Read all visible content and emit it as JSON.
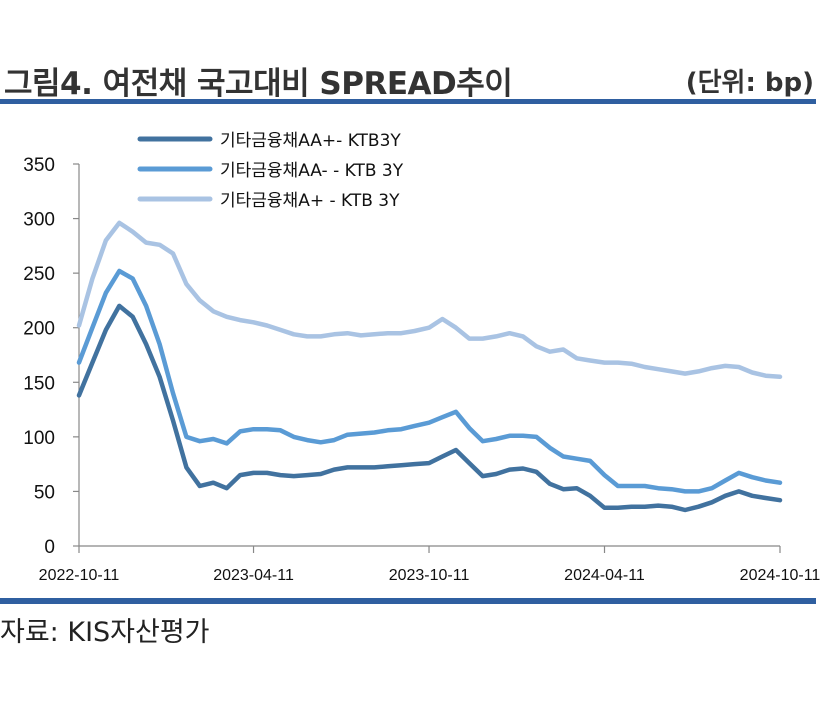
{
  "header": {
    "title": "그림4. 여전채 국고대비 SPREAD추이",
    "unit": "(단위: bp)"
  },
  "footer": {
    "source": "자료: KIS자산평가"
  },
  "chart_data": {
    "type": "line",
    "title": "그림4. 여전채 국고대비 SPREAD추이",
    "ylabel": "",
    "xlabel": "",
    "ylim": [
      0,
      350
    ],
    "yticks": [
      0,
      50,
      100,
      150,
      200,
      250,
      300,
      350
    ],
    "xlim": [
      "2022-10-11",
      "2024-10-11"
    ],
    "xticks": [
      "2022-10-11",
      "2023-04-11",
      "2023-10-11",
      "2024-04-11",
      "2024-10-11"
    ],
    "xtick_labels": [
      "2022-10-11",
      "2023-04-11",
      "2023-10-11",
      "2024-04-11",
      "2024-10-11"
    ],
    "grid": false,
    "legend_position": "top",
    "x": [
      "2022-10-11",
      "2022-10-25",
      "2022-11-08",
      "2022-11-22",
      "2022-12-06",
      "2022-12-20",
      "2023-01-03",
      "2023-01-17",
      "2023-01-31",
      "2023-02-14",
      "2023-02-28",
      "2023-03-14",
      "2023-03-28",
      "2023-04-11",
      "2023-04-25",
      "2023-05-09",
      "2023-05-23",
      "2023-06-06",
      "2023-06-20",
      "2023-07-04",
      "2023-07-18",
      "2023-08-01",
      "2023-08-15",
      "2023-08-29",
      "2023-09-12",
      "2023-09-26",
      "2023-10-11",
      "2023-10-25",
      "2023-11-08",
      "2023-11-22",
      "2023-12-06",
      "2023-12-20",
      "2024-01-03",
      "2024-01-17",
      "2024-01-31",
      "2024-02-14",
      "2024-02-28",
      "2024-03-13",
      "2024-03-27",
      "2024-04-11",
      "2024-04-25",
      "2024-05-09",
      "2024-05-23",
      "2024-06-06",
      "2024-06-20",
      "2024-07-04",
      "2024-07-18",
      "2024-08-01",
      "2024-08-15",
      "2024-08-29",
      "2024-09-12",
      "2024-09-26",
      "2024-10-11"
    ],
    "series": [
      {
        "name": "기타금융채AA+- KTB3Y",
        "color": "#41729f",
        "values": [
          138,
          168,
          198,
          220,
          210,
          185,
          155,
          115,
          72,
          55,
          58,
          53,
          65,
          67,
          67,
          65,
          64,
          65,
          66,
          70,
          72,
          72,
          72,
          73,
          74,
          75,
          76,
          82,
          88,
          76,
          64,
          66,
          70,
          71,
          68,
          57,
          52,
          53,
          46,
          35,
          35,
          36,
          36,
          37,
          36,
          33,
          36,
          40,
          46,
          50,
          46,
          44,
          42
        ]
      },
      {
        "name": "기타금융채AA- - KTB 3Y",
        "color": "#5a9bd5",
        "values": [
          168,
          200,
          232,
          252,
          245,
          220,
          185,
          140,
          100,
          96,
          98,
          94,
          105,
          107,
          107,
          106,
          100,
          97,
          95,
          97,
          102,
          103,
          104,
          106,
          107,
          110,
          113,
          118,
          123,
          108,
          96,
          98,
          101,
          101,
          100,
          90,
          82,
          80,
          78,
          65,
          55,
          55,
          55,
          53,
          52,
          50,
          50,
          53,
          60,
          67,
          63,
          60,
          58
        ]
      },
      {
        "name": "기타금융채A+ - KTB 3Y",
        "color": "#a9c3e3",
        "values": [
          202,
          245,
          280,
          296,
          288,
          278,
          276,
          268,
          240,
          225,
          215,
          210,
          207,
          205,
          202,
          198,
          194,
          192,
          192,
          194,
          195,
          193,
          194,
          195,
          195,
          197,
          200,
          208,
          200,
          190,
          190,
          192,
          195,
          192,
          183,
          178,
          180,
          172,
          170,
          168,
          168,
          167,
          164,
          162,
          160,
          158,
          160,
          163,
          165,
          164,
          159,
          156,
          155
        ]
      }
    ]
  }
}
